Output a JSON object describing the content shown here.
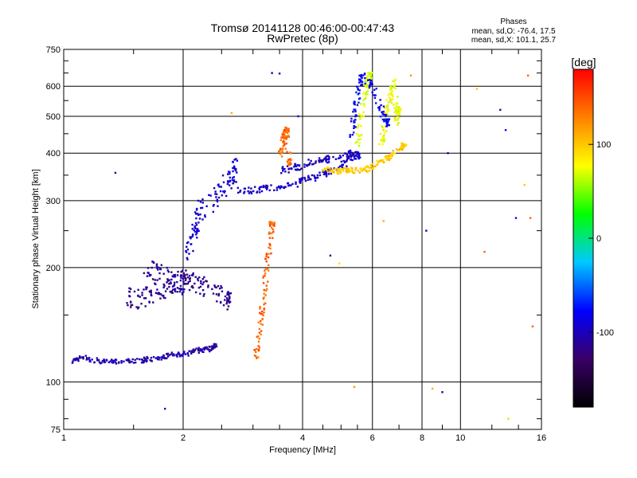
{
  "chart_data": {
    "type": "scatter",
    "title": "Tromsø 20141128 00:46:00-00:47:43",
    "subtitle": "RwPretec (8p)",
    "xlabel": "Frequency [MHz]",
    "ylabel": "Stationary phase Virtual Height [km]",
    "x_scale": "log",
    "y_scale": "log",
    "xlim": [
      1,
      16
    ],
    "ylim": [
      75,
      750
    ],
    "x_ticks": [
      "1",
      "2",
      "4",
      "6",
      "8",
      "10",
      "16"
    ],
    "y_ticks": [
      "75",
      "100",
      "200",
      "300",
      "400",
      "500",
      "600",
      "750"
    ],
    "x_gridlines": [
      2,
      4,
      6,
      8,
      10
    ],
    "y_gridlines": [
      100,
      200,
      300,
      400,
      500,
      600
    ],
    "grid": true,
    "stats": {
      "header": "Phases",
      "line1": "mean, sd,O: -76.4, 17.5",
      "line2": "mean, sd,X: 101.1, 25.7"
    },
    "colorbar": {
      "label": "[deg]",
      "range": [
        -180,
        180
      ],
      "ticks": [
        "100",
        "0",
        "-100"
      ],
      "colors": [
        "#000000",
        "#3a0066",
        "#0000ff",
        "#00c8ff",
        "#00ff00",
        "#ffff00",
        "#ff8000",
        "#ff0000"
      ]
    },
    "series": [
      {
        "x": [
          1.05,
          1.1,
          1.2,
          1.3,
          1.4,
          1.5,
          1.6,
          1.7,
          1.8,
          1.9,
          2.0,
          2.1,
          2.2,
          2.3,
          2.4
        ],
        "y": [
          112,
          116,
          114,
          113,
          113,
          114,
          114,
          116,
          116,
          118,
          118,
          120,
          121,
          122,
          124
        ],
        "phase": -105,
        "spread": 0.03
      },
      {
        "x": [
          1.45,
          1.5,
          1.6,
          1.7,
          1.8,
          1.9,
          2.0,
          2.1,
          2.2,
          2.3,
          2.5,
          2.6
        ],
        "y": [
          170,
          165,
          168,
          172,
          175,
          180,
          190,
          185,
          180,
          175,
          170,
          165
        ],
        "phase": -115,
        "spread": 0.12
      },
      {
        "x": [
          1.6,
          1.7,
          1.8,
          1.9,
          2.0
        ],
        "y": [
          200,
          195,
          190,
          185,
          180
        ],
        "phase": -110,
        "spread": 0.12
      },
      {
        "x": [
          2.05,
          2.1,
          2.15,
          2.2,
          2.4,
          2.5,
          2.6,
          2.7
        ],
        "y": [
          220,
          240,
          260,
          280,
          300,
          320,
          340,
          360
        ],
        "phase": -95,
        "spread": 0.15
      },
      {
        "x": [
          2.7,
          3.0,
          3.2,
          3.5,
          3.8,
          4.0,
          4.3,
          4.6,
          4.9,
          5.2,
          5.5
        ],
        "y": [
          318,
          320,
          322,
          325,
          330,
          338,
          345,
          355,
          365,
          380,
          395
        ],
        "phase": -95,
        "spread": 0.04
      },
      {
        "x": [
          3.5,
          3.8,
          4.0,
          4.3,
          4.6,
          5.0,
          5.3
        ],
        "y": [
          360,
          365,
          372,
          380,
          385,
          392,
          400
        ],
        "phase": -100,
        "spread": 0.04
      },
      {
        "x": [
          3.05,
          3.1,
          3.15,
          3.2,
          3.25,
          3.3,
          3.35
        ],
        "y": [
          115,
          130,
          150,
          170,
          200,
          230,
          260
        ],
        "phase": 140,
        "spread": 0.03
      },
      {
        "x": [
          3.5,
          3.55,
          3.6,
          3.65,
          3.7
        ],
        "y": [
          390,
          420,
          450,
          470,
          380
        ],
        "phase": 140,
        "spread": 0.04
      },
      {
        "x": [
          4.5,
          4.8,
          5.0,
          5.2,
          5.5,
          5.8,
          6.0,
          6.3,
          6.6,
          7.0,
          7.2
        ],
        "y": [
          365,
          360,
          358,
          362,
          360,
          362,
          370,
          380,
          390,
          410,
          420
        ],
        "phase": 100,
        "spread": 0.03
      },
      {
        "x": [
          5.5,
          5.6,
          5.7,
          5.8,
          5.9
        ],
        "y": [
          420,
          480,
          550,
          600,
          640
        ],
        "phase": 70,
        "spread": 0.04
      },
      {
        "x": [
          6.3,
          6.4,
          6.5,
          6.6,
          6.7,
          6.8,
          6.9,
          7.0
        ],
        "y": [
          420,
          460,
          500,
          540,
          580,
          620,
          480,
          520
        ],
        "phase": 75,
        "spread": 0.04
      },
      {
        "x": [
          5.3,
          5.4,
          5.5,
          5.6,
          5.7,
          6.0,
          6.3,
          6.6
        ],
        "y": [
          450,
          500,
          560,
          620,
          640,
          600,
          520,
          480
        ],
        "phase": -80,
        "spread": 0.05
      }
    ],
    "scattered_points": [
      {
        "x": 1.35,
        "y": 355,
        "phase": -100
      },
      {
        "x": 1.8,
        "y": 85,
        "phase": -110
      },
      {
        "x": 2.65,
        "y": 510,
        "phase": 110
      },
      {
        "x": 3.35,
        "y": 650,
        "phase": -100
      },
      {
        "x": 3.5,
        "y": 648,
        "phase": -100
      },
      {
        "x": 3.9,
        "y": 500,
        "phase": -75
      },
      {
        "x": 4.7,
        "y": 215,
        "phase": -110
      },
      {
        "x": 4.95,
        "y": 205,
        "phase": 90
      },
      {
        "x": 5.4,
        "y": 97,
        "phase": 120
      },
      {
        "x": 6.4,
        "y": 265,
        "phase": 110
      },
      {
        "x": 7.5,
        "y": 640,
        "phase": 120
      },
      {
        "x": 8.2,
        "y": 250,
        "phase": -90
      },
      {
        "x": 8.5,
        "y": 96,
        "phase": 110
      },
      {
        "x": 9.0,
        "y": 94,
        "phase": -120
      },
      {
        "x": 9.3,
        "y": 400,
        "phase": -90
      },
      {
        "x": 11.0,
        "y": 590,
        "phase": 100
      },
      {
        "x": 11.5,
        "y": 220,
        "phase": 140
      },
      {
        "x": 12.6,
        "y": 520,
        "phase": -110
      },
      {
        "x": 13.0,
        "y": 460,
        "phase": -75
      },
      {
        "x": 13.2,
        "y": 80,
        "phase": 60
      },
      {
        "x": 13.8,
        "y": 270,
        "phase": -85
      },
      {
        "x": 14.5,
        "y": 330,
        "phase": 100
      },
      {
        "x": 14.8,
        "y": 640,
        "phase": 140
      },
      {
        "x": 15.0,
        "y": 270,
        "phase": 140
      },
      {
        "x": 15.2,
        "y": 140,
        "phase": 140
      }
    ]
  }
}
